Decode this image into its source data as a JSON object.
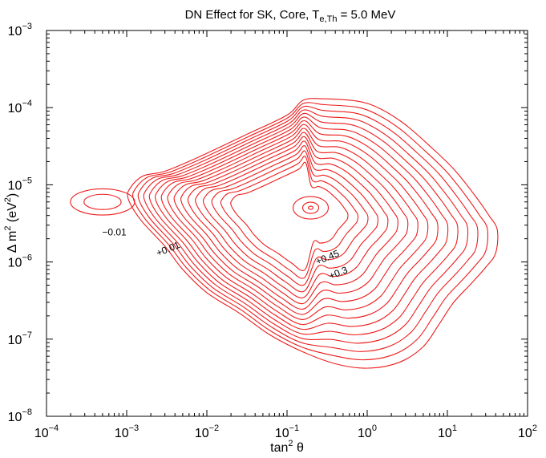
{
  "chart_data": {
    "type": "contour",
    "title": {
      "main": "DN Effect for SK, Core, T",
      "subscript": "e,Th",
      "rest": " = 5.0 MeV"
    },
    "xlabel": {
      "text": "tan",
      "sup": "2",
      "after": " θ"
    },
    "ylabel": {
      "text": "Δ m",
      "sup": "2",
      "mid": " (eV",
      "sup2": "2",
      "after": ")"
    },
    "x_scale": "log",
    "y_scale": "log",
    "xlim": [
      0.0001,
      100
    ],
    "ylim": [
      1e-08,
      0.001
    ],
    "x_ticks": [
      {
        "base": "10",
        "exp": "−4",
        "value": 0.0001
      },
      {
        "base": "10",
        "exp": "−3",
        "value": 0.001
      },
      {
        "base": "10",
        "exp": "−2",
        "value": 0.01
      },
      {
        "base": "10",
        "exp": "−1",
        "value": 0.1
      },
      {
        "base": "10",
        "exp": "0",
        "value": 1
      },
      {
        "base": "10",
        "exp": "1",
        "value": 10
      },
      {
        "base": "10",
        "exp": "2",
        "value": 100
      }
    ],
    "y_ticks": [
      {
        "base": "10",
        "exp": "−8",
        "value": 1e-08
      },
      {
        "base": "10",
        "exp": "−7",
        "value": 1e-07
      },
      {
        "base": "10",
        "exp": "−6",
        "value": 1e-06
      },
      {
        "base": "10",
        "exp": "−5",
        "value": 1e-05
      },
      {
        "base": "10",
        "exp": "−4",
        "value": 0.0001
      },
      {
        "base": "10",
        "exp": "−3",
        "value": 0.001
      }
    ],
    "contour_labels": [
      {
        "text": "−0.01",
        "x": 0.0007,
        "y": 2.2e-06,
        "rotation": 0
      },
      {
        "text": "+0.01",
        "x": 0.0034,
        "y": 1.35e-06,
        "rotation": -22
      },
      {
        "text": "+0.45",
        "x": 0.33,
        "y": 1.05e-06,
        "rotation": -22
      },
      {
        "text": "+0.3",
        "x": 0.45,
        "y": 6.6e-07,
        "rotation": -22
      }
    ],
    "center": {
      "x": 0.18,
      "y": 4.8e-06
    },
    "outer_contour": [
      [
        0.0011,
        9e-06
      ],
      [
        0.0016,
        1.3e-05
      ],
      [
        0.003,
        1.5e-05
      ],
      [
        0.008,
        2.3e-05
      ],
      [
        0.03,
        4.4e-05
      ],
      [
        0.1,
        8e-05
      ],
      [
        0.16,
        0.000125
      ],
      [
        0.3,
        0.00013
      ],
      [
        0.8,
        0.00012
      ],
      [
        1.5,
        9.5e-05
      ],
      [
        3,
        6e-05
      ],
      [
        6,
        3.2e-05
      ],
      [
        12,
        1.6e-05
      ],
      [
        22,
        7.3e-06
      ],
      [
        33,
        4e-06
      ],
      [
        42,
        2.6e-06
      ],
      [
        40,
        1.3e-06
      ],
      [
        30,
        8.5e-07
      ],
      [
        20,
        5.3e-07
      ],
      [
        12,
        3e-07
      ],
      [
        8,
        1.6e-07
      ],
      [
        5,
        8e-08
      ],
      [
        2.5,
        5e-08
      ],
      [
        1,
        4.2e-08
      ],
      [
        0.4,
        4.8e-08
      ],
      [
        0.15,
        7e-08
      ],
      [
        0.06,
        1.15e-07
      ],
      [
        0.025,
        2.2e-07
      ],
      [
        0.01,
        4e-07
      ],
      [
        0.005,
        8e-07
      ],
      [
        0.003,
        1.6e-06
      ],
      [
        0.0015,
        3.5e-06
      ],
      [
        0.00105,
        6.5e-06
      ]
    ],
    "level_count": 16,
    "neg_region": {
      "x": 0.0005,
      "y": 6e-06,
      "rx_decades": 0.4,
      "ry_decades": 0.17,
      "levels": 2
    }
  }
}
